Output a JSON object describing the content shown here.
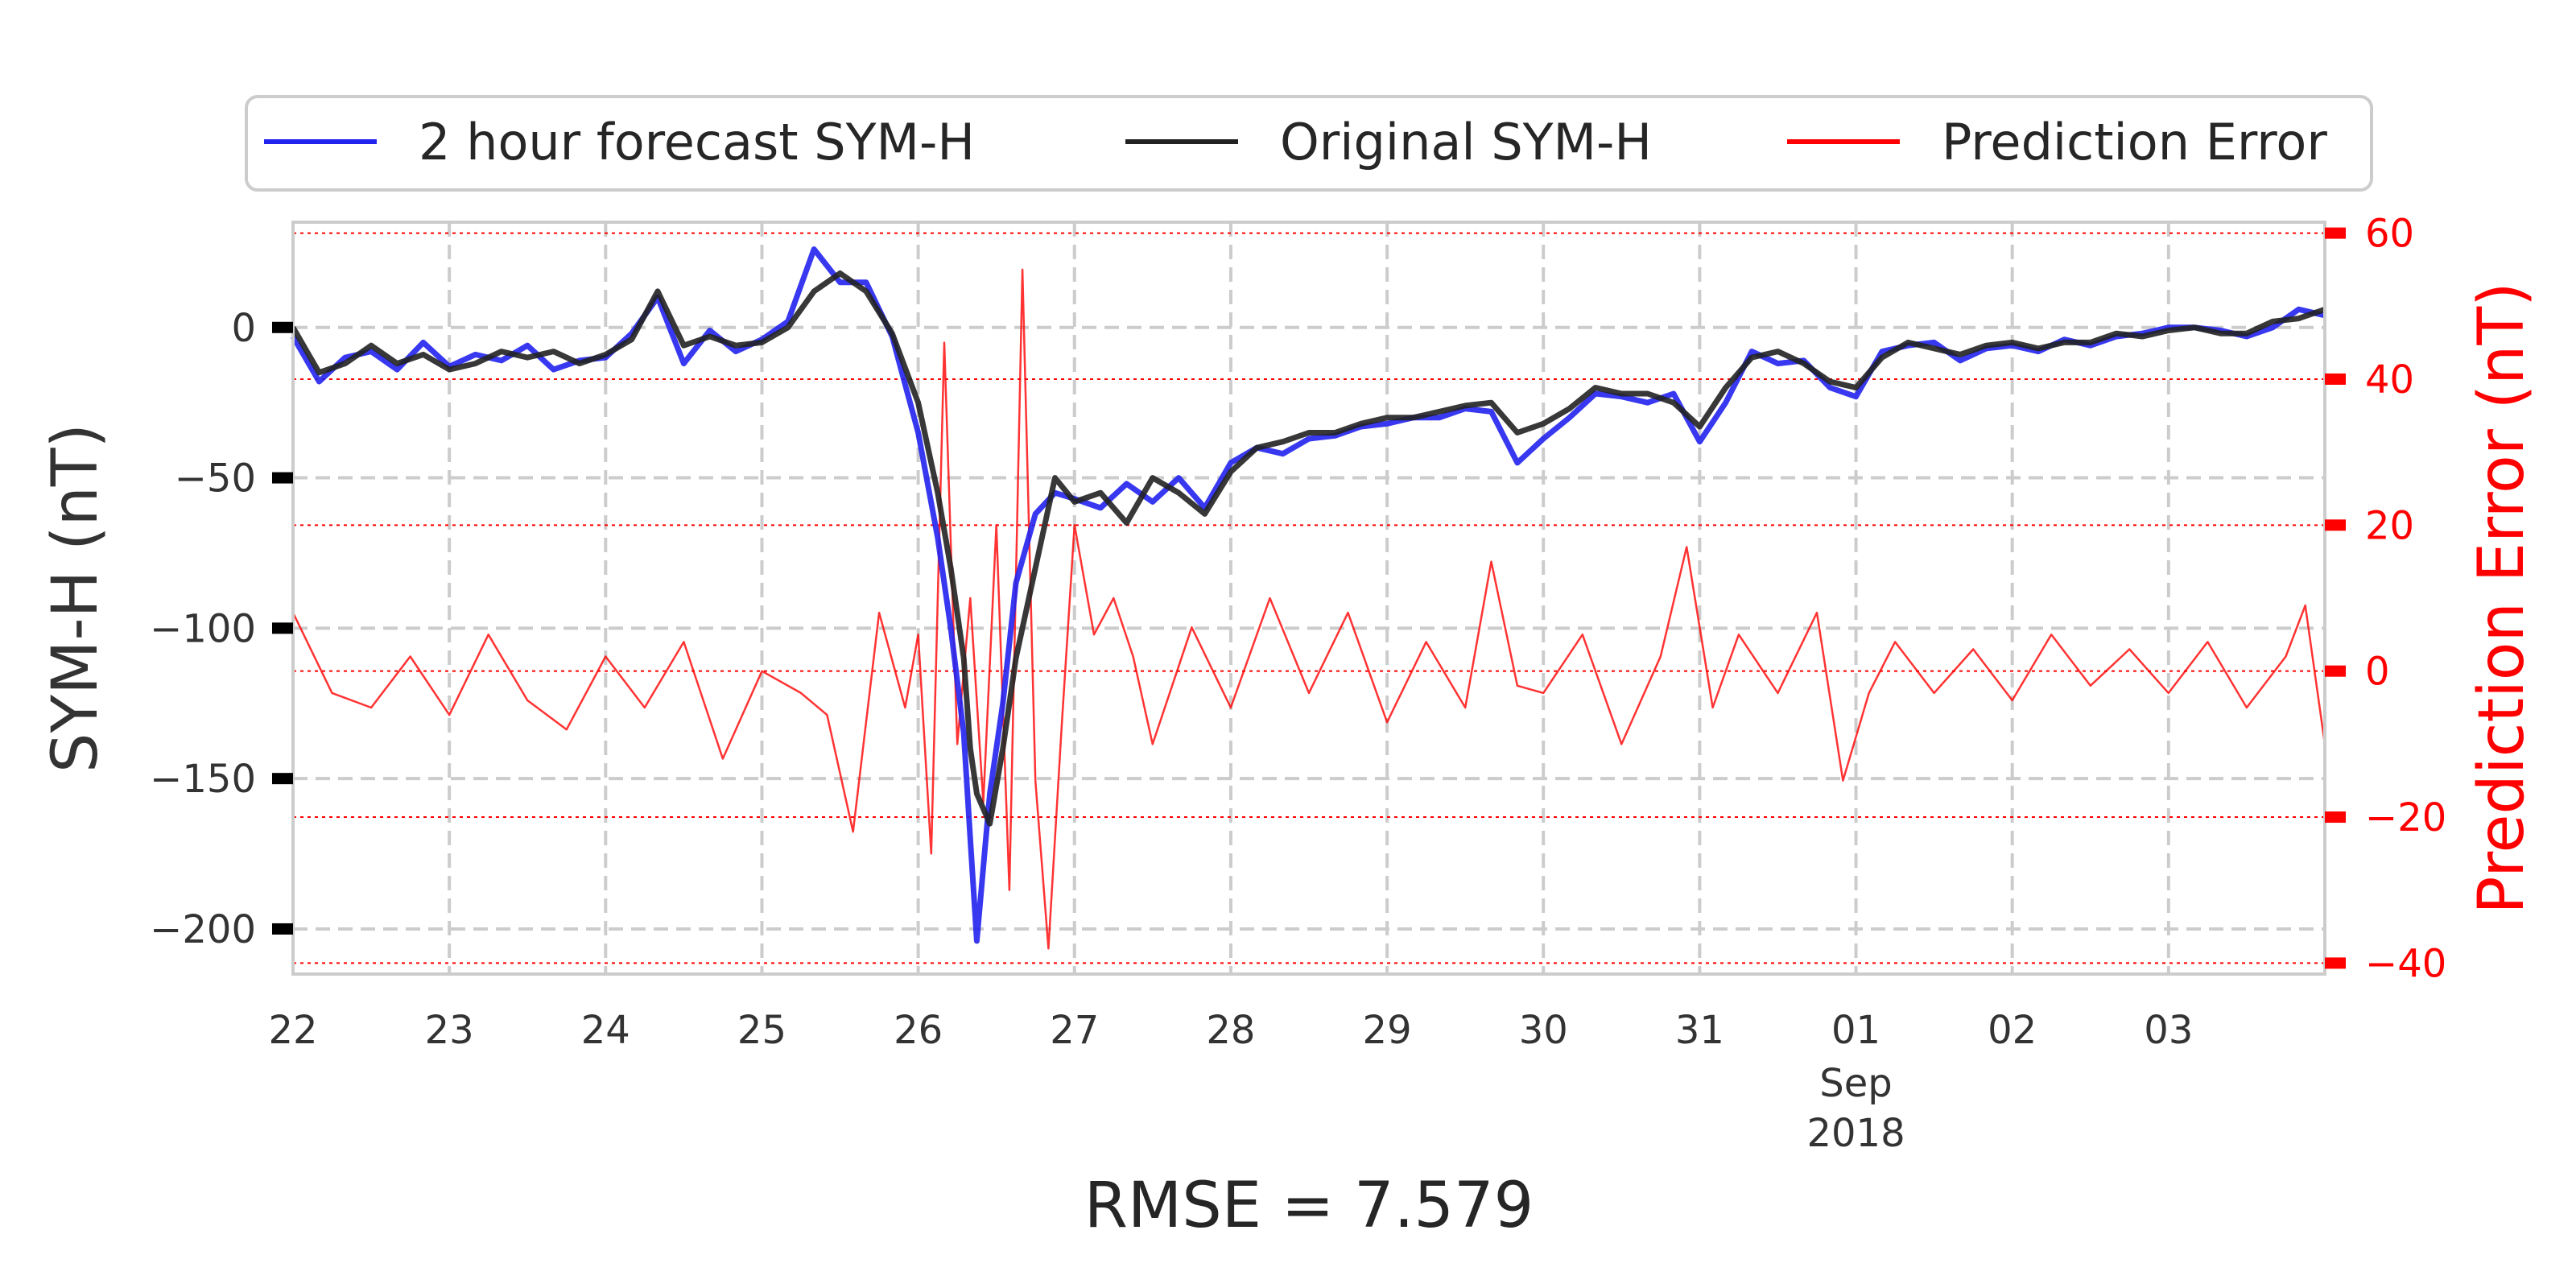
{
  "chart_data": {
    "type": "line",
    "xlabel": "RMSE = 7.579",
    "ylabel": "SYM-H (nT)",
    "ylabel_right": "Prediction Error (nT)",
    "x_range": [
      "2018-08-22",
      "2018-09-04"
    ],
    "x_ticks": [
      {
        "date": "2018-08-22",
        "label": "22"
      },
      {
        "date": "2018-08-23",
        "label": "23"
      },
      {
        "date": "2018-08-24",
        "label": "24"
      },
      {
        "date": "2018-08-25",
        "label": "25"
      },
      {
        "date": "2018-08-26",
        "label": "26"
      },
      {
        "date": "2018-08-27",
        "label": "27"
      },
      {
        "date": "2018-08-28",
        "label": "28"
      },
      {
        "date": "2018-08-29",
        "label": "29"
      },
      {
        "date": "2018-08-30",
        "label": "30"
      },
      {
        "date": "2018-08-31",
        "label": "31"
      },
      {
        "date": "2018-09-01",
        "label": "01"
      },
      {
        "date": "2018-09-02",
        "label": "02"
      },
      {
        "date": "2018-09-03",
        "label": "03"
      }
    ],
    "x_tick_sublabel": {
      "date": "2018-09-01",
      "month": "Sep",
      "year": "2018"
    },
    "ylim": [
      -215,
      35
    ],
    "y_ticks": [
      0,
      -50,
      -100,
      -150,
      -200
    ],
    "y_tick_labels": [
      "0",
      "−50",
      "−100",
      "−150",
      "−200"
    ],
    "ylim_right": [
      -41.5,
      61.5
    ],
    "y_ticks_right": [
      60,
      40,
      20,
      0,
      -20,
      -40
    ],
    "y_tick_labels_right": [
      "60",
      "40",
      "20",
      "0",
      "−20",
      "−40"
    ],
    "grid": true,
    "legend_position": "top-center",
    "series": [
      {
        "name": "2 hour forecast SYM-H",
        "color": "#2222ee",
        "axis": "left",
        "x": [
          "2018-08-22 00:00",
          "2018-08-22 04:00",
          "2018-08-22 08:00",
          "2018-08-22 12:00",
          "2018-08-22 16:00",
          "2018-08-22 20:00",
          "2018-08-23 00:00",
          "2018-08-23 04:00",
          "2018-08-23 08:00",
          "2018-08-23 12:00",
          "2018-08-23 16:00",
          "2018-08-23 20:00",
          "2018-08-24 00:00",
          "2018-08-24 04:00",
          "2018-08-24 08:00",
          "2018-08-24 12:00",
          "2018-08-24 16:00",
          "2018-08-24 20:00",
          "2018-08-25 00:00",
          "2018-08-25 04:00",
          "2018-08-25 08:00",
          "2018-08-25 12:00",
          "2018-08-25 16:00",
          "2018-08-25 20:00",
          "2018-08-26 00:00",
          "2018-08-26 03:00",
          "2018-08-26 05:00",
          "2018-08-26 07:00",
          "2018-08-26 08:00",
          "2018-08-26 09:00",
          "2018-08-26 11:00",
          "2018-08-26 13:00",
          "2018-08-26 15:00",
          "2018-08-26 18:00",
          "2018-08-26 21:00",
          "2018-08-27 00:00",
          "2018-08-27 04:00",
          "2018-08-27 08:00",
          "2018-08-27 12:00",
          "2018-08-27 16:00",
          "2018-08-27 20:00",
          "2018-08-28 00:00",
          "2018-08-28 04:00",
          "2018-08-28 08:00",
          "2018-08-28 12:00",
          "2018-08-28 16:00",
          "2018-08-28 20:00",
          "2018-08-29 00:00",
          "2018-08-29 04:00",
          "2018-08-29 08:00",
          "2018-08-29 12:00",
          "2018-08-29 16:00",
          "2018-08-29 20:00",
          "2018-08-30 00:00",
          "2018-08-30 04:00",
          "2018-08-30 08:00",
          "2018-08-30 12:00",
          "2018-08-30 16:00",
          "2018-08-30 20:00",
          "2018-08-31 00:00",
          "2018-08-31 04:00",
          "2018-08-31 08:00",
          "2018-08-31 12:00",
          "2018-08-31 16:00",
          "2018-08-31 20:00",
          "2018-09-01 00:00",
          "2018-09-01 04:00",
          "2018-09-01 08:00",
          "2018-09-01 12:00",
          "2018-09-01 16:00",
          "2018-09-01 20:00",
          "2018-09-02 00:00",
          "2018-09-02 04:00",
          "2018-09-02 08:00",
          "2018-09-02 12:00",
          "2018-09-02 16:00",
          "2018-09-02 20:00",
          "2018-09-03 00:00",
          "2018-09-03 04:00",
          "2018-09-03 08:00",
          "2018-09-03 12:00",
          "2018-09-03 16:00",
          "2018-09-03 20:00",
          "2018-09-04 00:00"
        ],
        "y": [
          -3,
          -18,
          -10,
          -8,
          -14,
          -5,
          -13,
          -9,
          -11,
          -6,
          -14,
          -11,
          -10,
          -2,
          10,
          -12,
          -1,
          -8,
          -4,
          2,
          26,
          15,
          15,
          -3,
          -35,
          -70,
          -100,
          -135,
          -170,
          -204,
          -155,
          -125,
          -85,
          -62,
          -55,
          -57,
          -60,
          -52,
          -58,
          -50,
          -60,
          -45,
          -40,
          -42,
          -37,
          -36,
          -33,
          -32,
          -30,
          -30,
          -27,
          -28,
          -45,
          -37,
          -30,
          -22,
          -23,
          -25,
          -22,
          -38,
          -25,
          -8,
          -12,
          -11,
          -20,
          -23,
          -8,
          -6,
          -5,
          -11,
          -7,
          -6,
          -8,
          -4,
          -6,
          -3,
          -2,
          0,
          0,
          -1,
          -3,
          0,
          6,
          4
        ]
      },
      {
        "name": "Original SYM-H",
        "color": "#222222",
        "axis": "left",
        "x": [
          "2018-08-22 00:00",
          "2018-08-22 04:00",
          "2018-08-22 08:00",
          "2018-08-22 12:00",
          "2018-08-22 16:00",
          "2018-08-22 20:00",
          "2018-08-23 00:00",
          "2018-08-23 04:00",
          "2018-08-23 08:00",
          "2018-08-23 12:00",
          "2018-08-23 16:00",
          "2018-08-23 20:00",
          "2018-08-24 00:00",
          "2018-08-24 04:00",
          "2018-08-24 08:00",
          "2018-08-24 12:00",
          "2018-08-24 16:00",
          "2018-08-24 20:00",
          "2018-08-25 00:00",
          "2018-08-25 04:00",
          "2018-08-25 08:00",
          "2018-08-25 12:00",
          "2018-08-25 16:00",
          "2018-08-25 20:00",
          "2018-08-26 00:00",
          "2018-08-26 03:00",
          "2018-08-26 05:00",
          "2018-08-26 07:00",
          "2018-08-26 08:00",
          "2018-08-26 09:00",
          "2018-08-26 11:00",
          "2018-08-26 13:00",
          "2018-08-26 15:00",
          "2018-08-26 18:00",
          "2018-08-26 21:00",
          "2018-08-27 00:00",
          "2018-08-27 04:00",
          "2018-08-27 08:00",
          "2018-08-27 12:00",
          "2018-08-27 16:00",
          "2018-08-27 20:00",
          "2018-08-28 00:00",
          "2018-08-28 04:00",
          "2018-08-28 08:00",
          "2018-08-28 12:00",
          "2018-08-28 16:00",
          "2018-08-28 20:00",
          "2018-08-29 00:00",
          "2018-08-29 04:00",
          "2018-08-29 08:00",
          "2018-08-29 12:00",
          "2018-08-29 16:00",
          "2018-08-29 20:00",
          "2018-08-30 00:00",
          "2018-08-30 04:00",
          "2018-08-30 08:00",
          "2018-08-30 12:00",
          "2018-08-30 16:00",
          "2018-08-30 20:00",
          "2018-08-31 00:00",
          "2018-08-31 04:00",
          "2018-08-31 08:00",
          "2018-08-31 12:00",
          "2018-08-31 16:00",
          "2018-08-31 20:00",
          "2018-09-01 00:00",
          "2018-09-01 04:00",
          "2018-09-01 08:00",
          "2018-09-01 12:00",
          "2018-09-01 16:00",
          "2018-09-01 20:00",
          "2018-09-02 00:00",
          "2018-09-02 04:00",
          "2018-09-02 08:00",
          "2018-09-02 12:00",
          "2018-09-02 16:00",
          "2018-09-02 20:00",
          "2018-09-03 00:00",
          "2018-09-03 04:00",
          "2018-09-03 08:00",
          "2018-09-03 12:00",
          "2018-09-03 16:00",
          "2018-09-03 20:00",
          "2018-09-04 00:00"
        ],
        "y": [
          0,
          -15,
          -12,
          -6,
          -12,
          -9,
          -14,
          -12,
          -8,
          -10,
          -8,
          -12,
          -9,
          -4,
          12,
          -6,
          -3,
          -6,
          -5,
          0,
          12,
          18,
          12,
          -2,
          -25,
          -55,
          -80,
          -110,
          -140,
          -155,
          -165,
          -140,
          -110,
          -80,
          -50,
          -58,
          -55,
          -65,
          -50,
          -55,
          -62,
          -48,
          -40,
          -38,
          -35,
          -35,
          -32,
          -30,
          -30,
          -28,
          -26,
          -25,
          -35,
          -32,
          -27,
          -20,
          -22,
          -22,
          -25,
          -33,
          -20,
          -10,
          -8,
          -12,
          -18,
          -20,
          -10,
          -5,
          -7,
          -9,
          -6,
          -5,
          -7,
          -5,
          -5,
          -2,
          -3,
          -1,
          0,
          -2,
          -2,
          2,
          3,
          6
        ]
      },
      {
        "name": "Prediction Error",
        "color": "#ff0000",
        "axis": "right",
        "x": [
          "2018-08-22 00:00",
          "2018-08-22 06:00",
          "2018-08-22 12:00",
          "2018-08-22 18:00",
          "2018-08-23 00:00",
          "2018-08-23 06:00",
          "2018-08-23 12:00",
          "2018-08-23 18:00",
          "2018-08-24 00:00",
          "2018-08-24 06:00",
          "2018-08-24 12:00",
          "2018-08-24 18:00",
          "2018-08-25 00:00",
          "2018-08-25 06:00",
          "2018-08-25 10:00",
          "2018-08-25 14:00",
          "2018-08-25 18:00",
          "2018-08-25 22:00",
          "2018-08-26 00:00",
          "2018-08-26 02:00",
          "2018-08-26 04:00",
          "2018-08-26 06:00",
          "2018-08-26 08:00",
          "2018-08-26 10:00",
          "2018-08-26 12:00",
          "2018-08-26 14:00",
          "2018-08-26 16:00",
          "2018-08-26 18:00",
          "2018-08-26 20:00",
          "2018-08-26 22:00",
          "2018-08-27 00:00",
          "2018-08-27 03:00",
          "2018-08-27 06:00",
          "2018-08-27 09:00",
          "2018-08-27 12:00",
          "2018-08-27 18:00",
          "2018-08-28 00:00",
          "2018-08-28 06:00",
          "2018-08-28 12:00",
          "2018-08-28 18:00",
          "2018-08-29 00:00",
          "2018-08-29 06:00",
          "2018-08-29 12:00",
          "2018-08-29 16:00",
          "2018-08-29 20:00",
          "2018-08-30 00:00",
          "2018-08-30 06:00",
          "2018-08-30 12:00",
          "2018-08-30 18:00",
          "2018-08-30 22:00",
          "2018-08-31 02:00",
          "2018-08-31 06:00",
          "2018-08-31 12:00",
          "2018-08-31 18:00",
          "2018-08-31 22:00",
          "2018-09-01 02:00",
          "2018-09-01 06:00",
          "2018-09-01 12:00",
          "2018-09-01 18:00",
          "2018-09-02 00:00",
          "2018-09-02 06:00",
          "2018-09-02 12:00",
          "2018-09-02 18:00",
          "2018-09-03 00:00",
          "2018-09-03 06:00",
          "2018-09-03 12:00",
          "2018-09-03 18:00",
          "2018-09-03 21:00",
          "2018-09-04 00:00"
        ],
        "y": [
          8,
          -3,
          -5,
          2,
          -6,
          5,
          -4,
          -8,
          2,
          -5,
          4,
          -12,
          0,
          -3,
          -6,
          -22,
          8,
          -5,
          5,
          -25,
          45,
          -10,
          10,
          -18,
          20,
          -30,
          55,
          -15,
          -38,
          -8,
          20,
          5,
          10,
          2,
          -10,
          6,
          -5,
          10,
          -3,
          8,
          -7,
          4,
          -5,
          15,
          -2,
          -3,
          5,
          -10,
          2,
          17,
          -5,
          5,
          -3,
          8,
          -15,
          -3,
          4,
          -3,
          3,
          -4,
          5,
          -2,
          3,
          -3,
          4,
          -5,
          2,
          9,
          -10
        ]
      }
    ],
    "colors": {
      "forecast": "#2222ee",
      "original": "#222222",
      "error": "#ff0000",
      "grid": "#cccccc",
      "spine": "#cccccc"
    }
  }
}
